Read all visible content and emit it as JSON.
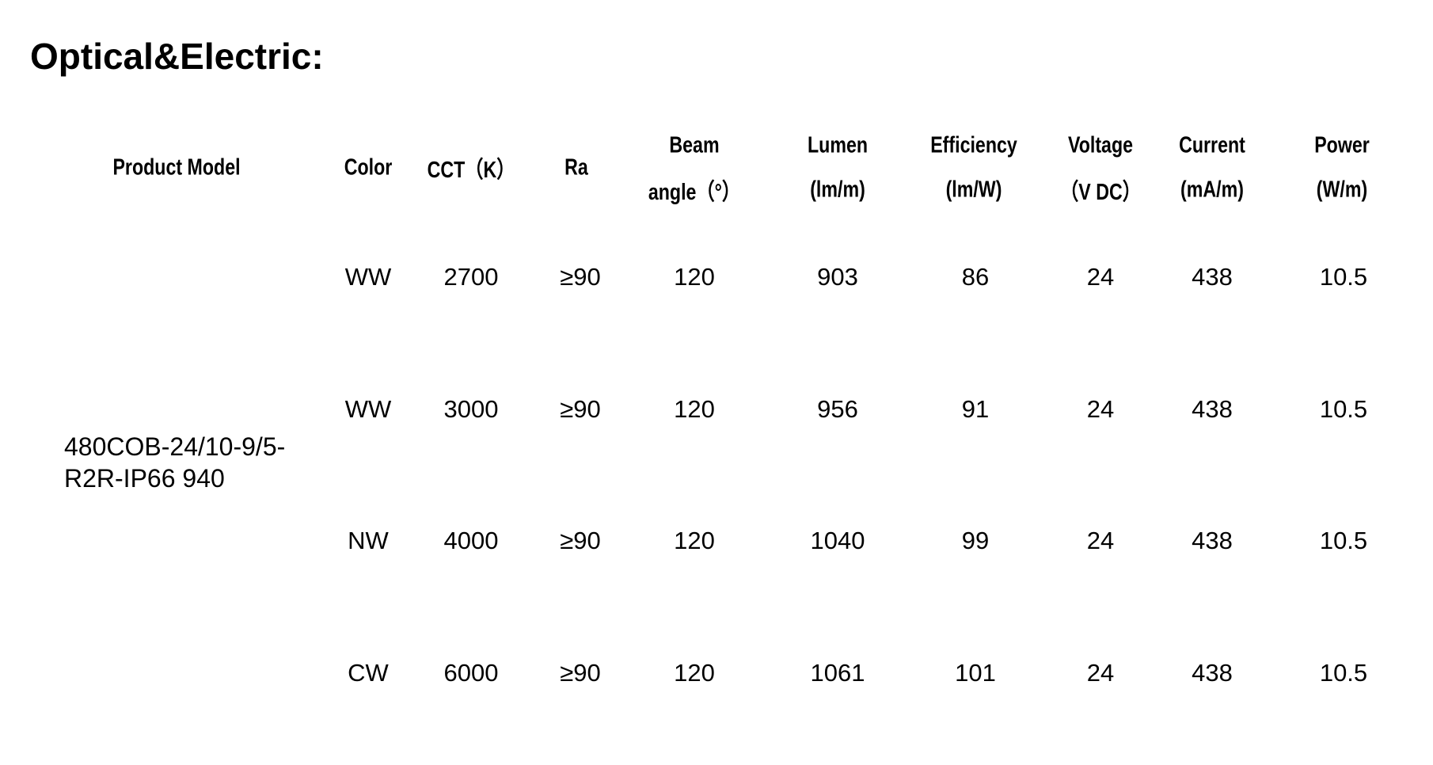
{
  "title": "Optical&Electric:",
  "table": {
    "headers": [
      {
        "line1": "Product Model",
        "line2": ""
      },
      {
        "line1": "Color",
        "line2": ""
      },
      {
        "line1": "CCT（K）",
        "line2": ""
      },
      {
        "line1": "Ra",
        "line2": ""
      },
      {
        "line1": "Beam",
        "line2": "angle（°）"
      },
      {
        "line1": "Lumen",
        "line2": "(lm/m)"
      },
      {
        "line1": "Efficiency",
        "line2": "(lm/W)"
      },
      {
        "line1": "Voltage",
        "line2": "（V DC）"
      },
      {
        "line1": "Current",
        "line2": "(mA/m)"
      },
      {
        "line1": "Power",
        "line2": "(W/m)"
      }
    ],
    "product_model_line1": "480COB-24/10-9/5-",
    "product_model_line2": "R2R-IP66 940",
    "rows": [
      [
        "WW",
        "2700",
        "≥90",
        "120",
        "903",
        "86",
        "24",
        "438",
        "10.5"
      ],
      [
        "WW",
        "3000",
        "≥90",
        "120",
        "956",
        "91",
        "24",
        "438",
        "10.5"
      ],
      [
        "NW",
        "4000",
        "≥90",
        "120",
        "1040",
        "99",
        "24",
        "438",
        "10.5"
      ],
      [
        "CW",
        "6000",
        "≥90",
        "120",
        "1061",
        "101",
        "24",
        "438",
        "10.5"
      ]
    ]
  }
}
